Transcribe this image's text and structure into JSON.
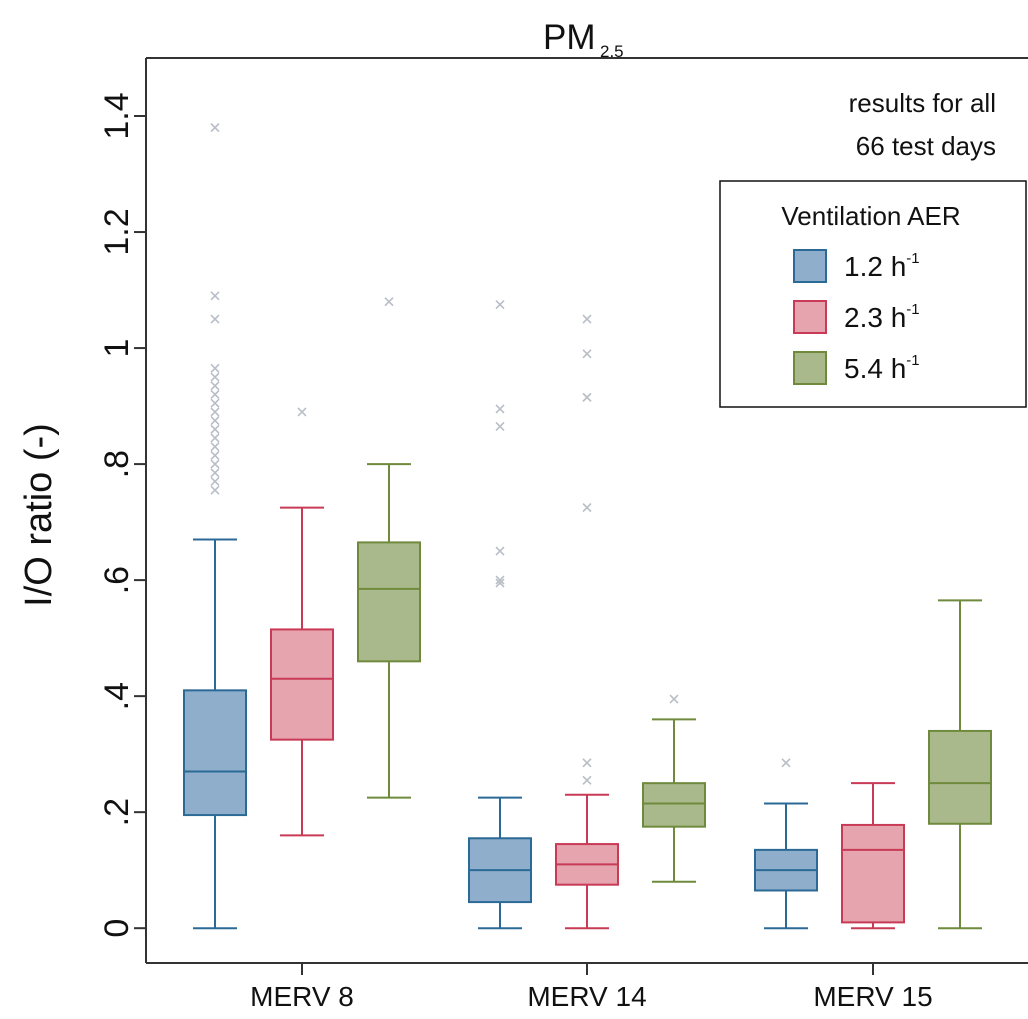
{
  "chart_data": {
    "type": "box",
    "title": "PM",
    "title_subscript": "2.5",
    "ylabel": "I/O ratio (-)",
    "xlabel": "",
    "ylim": [
      -0.06,
      1.5
    ],
    "yticks": [
      {
        "value": 0,
        "label": "0"
      },
      {
        "value": 0.2,
        "label": ".2"
      },
      {
        "value": 0.4,
        "label": ".4"
      },
      {
        "value": 0.6,
        "label": ".6"
      },
      {
        "value": 0.8,
        "label": ".8"
      },
      {
        "value": 1.0,
        "label": "1"
      },
      {
        "value": 1.2,
        "label": "1.2"
      },
      {
        "value": 1.4,
        "label": "1.4"
      }
    ],
    "categories": [
      "MERV 8",
      "MERV 14",
      "MERV 15"
    ],
    "annotation": [
      "results for all",
      "66 test days"
    ],
    "legend": {
      "title": "Ventilation AER",
      "placement": "top-right",
      "entries": [
        {
          "name": "1.2 h",
          "sup": "-1",
          "fill": "#8faecb",
          "stroke": "#2b6a97"
        },
        {
          "name": "2.3 h",
          "sup": "-1",
          "fill": "#e6a4ae",
          "stroke": "#c83a55"
        },
        {
          "name": "5.4 h",
          "sup": "-1",
          "fill": "#a9b98b",
          "stroke": "#6f8a3d"
        }
      ]
    },
    "outlier_color": "#b8bec6",
    "series": [
      {
        "name": "1.2 h-1",
        "boxes": [
          {
            "category": "MERV 8",
            "whisker_low": 0.0,
            "q1": 0.195,
            "median": 0.27,
            "q3": 0.41,
            "whisker_high": 0.67,
            "outliers": [
              0.755,
              0.77,
              0.785,
              0.8,
              0.815,
              0.83,
              0.845,
              0.86,
              0.875,
              0.89,
              0.905,
              0.92,
              0.935,
              0.95,
              0.965,
              1.05,
              1.09,
              1.38
            ]
          },
          {
            "category": "MERV 14",
            "whisker_low": 0.0,
            "q1": 0.045,
            "median": 0.1,
            "q3": 0.155,
            "whisker_high": 0.225,
            "outliers": [
              0.595,
              0.6,
              0.65,
              0.865,
              0.895,
              1.075
            ]
          },
          {
            "category": "MERV 15",
            "whisker_low": 0.0,
            "q1": 0.065,
            "median": 0.1,
            "q3": 0.135,
            "whisker_high": 0.215,
            "outliers": [
              0.285
            ]
          }
        ]
      },
      {
        "name": "2.3 h-1",
        "boxes": [
          {
            "category": "MERV 8",
            "whisker_low": 0.16,
            "q1": 0.325,
            "median": 0.43,
            "q3": 0.515,
            "whisker_high": 0.725,
            "outliers": [
              0.89
            ]
          },
          {
            "category": "MERV 14",
            "whisker_low": 0.0,
            "q1": 0.075,
            "median": 0.11,
            "q3": 0.145,
            "whisker_high": 0.23,
            "outliers": [
              0.255,
              0.285,
              0.725,
              0.915,
              0.99,
              1.05
            ]
          },
          {
            "category": "MERV 15",
            "whisker_low": 0.0,
            "q1": 0.01,
            "median": 0.135,
            "q3": 0.178,
            "whisker_high": 0.25,
            "outliers": []
          }
        ]
      },
      {
        "name": "5.4 h-1",
        "boxes": [
          {
            "category": "MERV 8",
            "whisker_low": 0.225,
            "q1": 0.46,
            "median": 0.585,
            "q3": 0.665,
            "whisker_high": 0.8,
            "outliers": [
              1.08
            ]
          },
          {
            "category": "MERV 14",
            "whisker_low": 0.08,
            "q1": 0.175,
            "median": 0.215,
            "q3": 0.25,
            "whisker_high": 0.36,
            "outliers": [
              0.395
            ]
          },
          {
            "category": "MERV 15",
            "whisker_low": 0.0,
            "q1": 0.18,
            "median": 0.25,
            "q3": 0.34,
            "whisker_high": 0.565,
            "outliers": []
          }
        ]
      }
    ]
  }
}
